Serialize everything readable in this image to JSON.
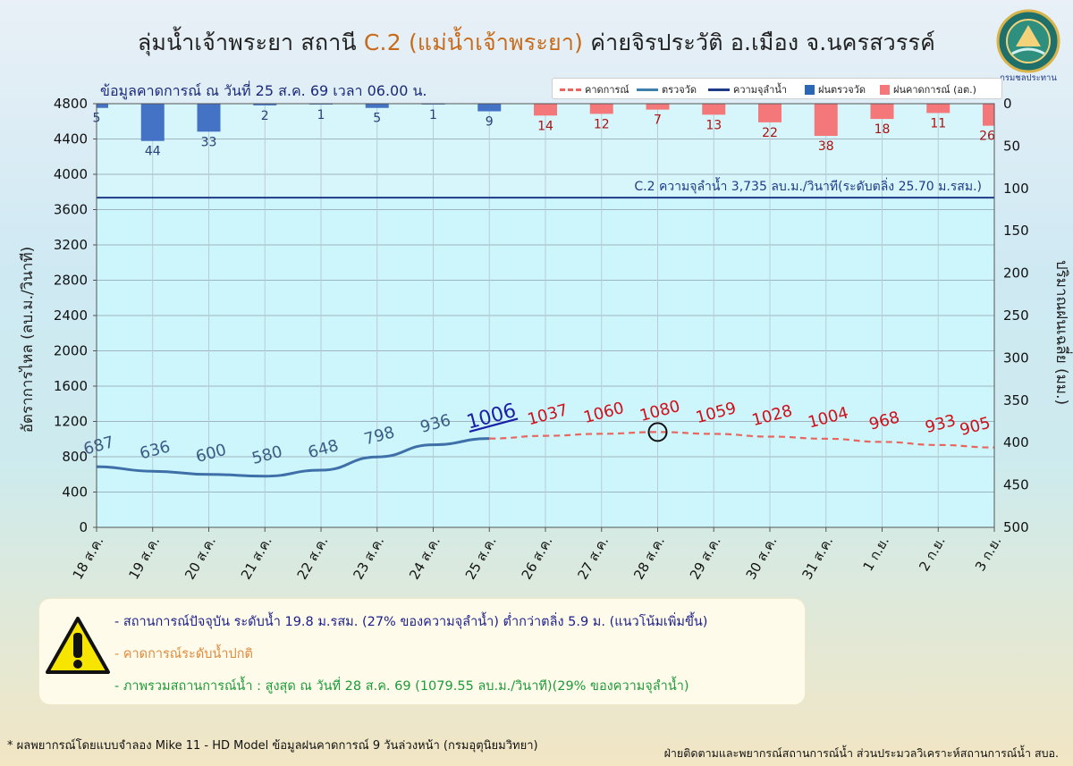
{
  "header": {
    "title_pre": "ลุ่มน้ำเจ้าพระยา สถานี ",
    "title_station": "C.2 (แม่น้ำเจ้าพระยา)",
    "title_post": " ค่ายจิรประวัติ อ.เมือง จ.นครสวรรค์",
    "subtitle": "ข้อมูลคาดการณ์ ณ วันที่ 25 ส.ค. 69 เวลา 06.00 น.",
    "logo_text": "กรมชลประทาน"
  },
  "legend": {
    "forecast": "คาดการณ์",
    "measured": "ตรวจวัด",
    "capacity": "ความจุลำน้ำ",
    "rain_measured": "ฝนตรวจวัด",
    "rain_forecast": "ฝนคาดการณ์ (อต.)"
  },
  "colors": {
    "measured_line": "#3f6fa8",
    "forecast_line": "#e8665f",
    "capacity_line": "#1f3b88",
    "rain_measured": "#4472c4",
    "rain_forecast": "#f4787a",
    "plot_bg": "#ccf6fb"
  },
  "chart_data": {
    "type": "line",
    "title": "ลุ่มน้ำเจ้าพระยา สถานี C.2 (แม่น้ำเจ้าพระยา) ค่ายจิรประวัติ อ.เมือง จ.นครสวรรค์",
    "ylabel": "อัตราการไหล (ลบ.ม./วินาที)",
    "y2label": "ปริมาณฝนเฉลี่ย (มม.)",
    "ylim": [
      0,
      4800
    ],
    "yticks": [
      0,
      400,
      800,
      1200,
      1600,
      2000,
      2400,
      2800,
      3200,
      3600,
      4000,
      4400,
      4800
    ],
    "y2lim": [
      500,
      0
    ],
    "y2ticks": [
      0,
      50,
      100,
      150,
      200,
      250,
      300,
      350,
      400,
      450,
      500
    ],
    "categories": [
      "18 ส.ค.",
      "19 ส.ค.",
      "20 ส.ค.",
      "21 ส.ค.",
      "22 ส.ค.",
      "23 ส.ค.",
      "24 ส.ค.",
      "25 ส.ค.",
      "26 ส.ค.",
      "27 ส.ค.",
      "28 ส.ค.",
      "29 ส.ค.",
      "30 ส.ค.",
      "31 ส.ค.",
      "1 ก.ย.",
      "2 ก.ย.",
      "3 ก.ย."
    ],
    "flow_labels": [
      687,
      636,
      600,
      580,
      648,
      798,
      936,
      1006,
      1037,
      1060,
      1080,
      1059,
      1028,
      1004,
      968,
      933,
      905
    ],
    "measured_end_index": 7,
    "peak_index": 10,
    "capacity_value": 3735,
    "capacity_label": "C.2 ความจุลำน้ำ 3,735 ลบ.ม./วินาที(ระดับตลิ่ง 25.70 ม.รสม.)",
    "rain_values": [
      5,
      44,
      33,
      2,
      1,
      5,
      1,
      9,
      14,
      12,
      7,
      13,
      22,
      38,
      18,
      11,
      26
    ],
    "rain_forecast_start_index": 8
  },
  "info": {
    "line1": "- สถานการณ์ปัจจุบัน ระดับน้ำ 19.8 ม.รสม. (27% ของความจุลำน้ำ) ต่ำกว่าตลิ่ง 5.9 ม. (แนวโน้มเพิ่มขึ้น)",
    "line2": "- คาดการณ์ระดับน้ำปกติ",
    "line3": "- ภาพรวมสถานการณ์น้ำ : สูงสุด ณ วันที่ 28 ส.ค. 69 (1079.55 ลบ.ม./วินาที)(29% ของความจุลำน้ำ)"
  },
  "footer": {
    "left": "* ผลพยากรณ์โดยแบบจำลอง Mike 11 - HD Model ข้อมูลฝนคาดการณ์ 9 วันล่วงหน้า (กรมอุตุนิยมวิทยา)",
    "right": "ฝ่ายติดตามและพยากรณ์สถานการณ์น้ำ ส่วนประมวลวิเคราะห์สถานการณ์น้ำ สบอ."
  }
}
